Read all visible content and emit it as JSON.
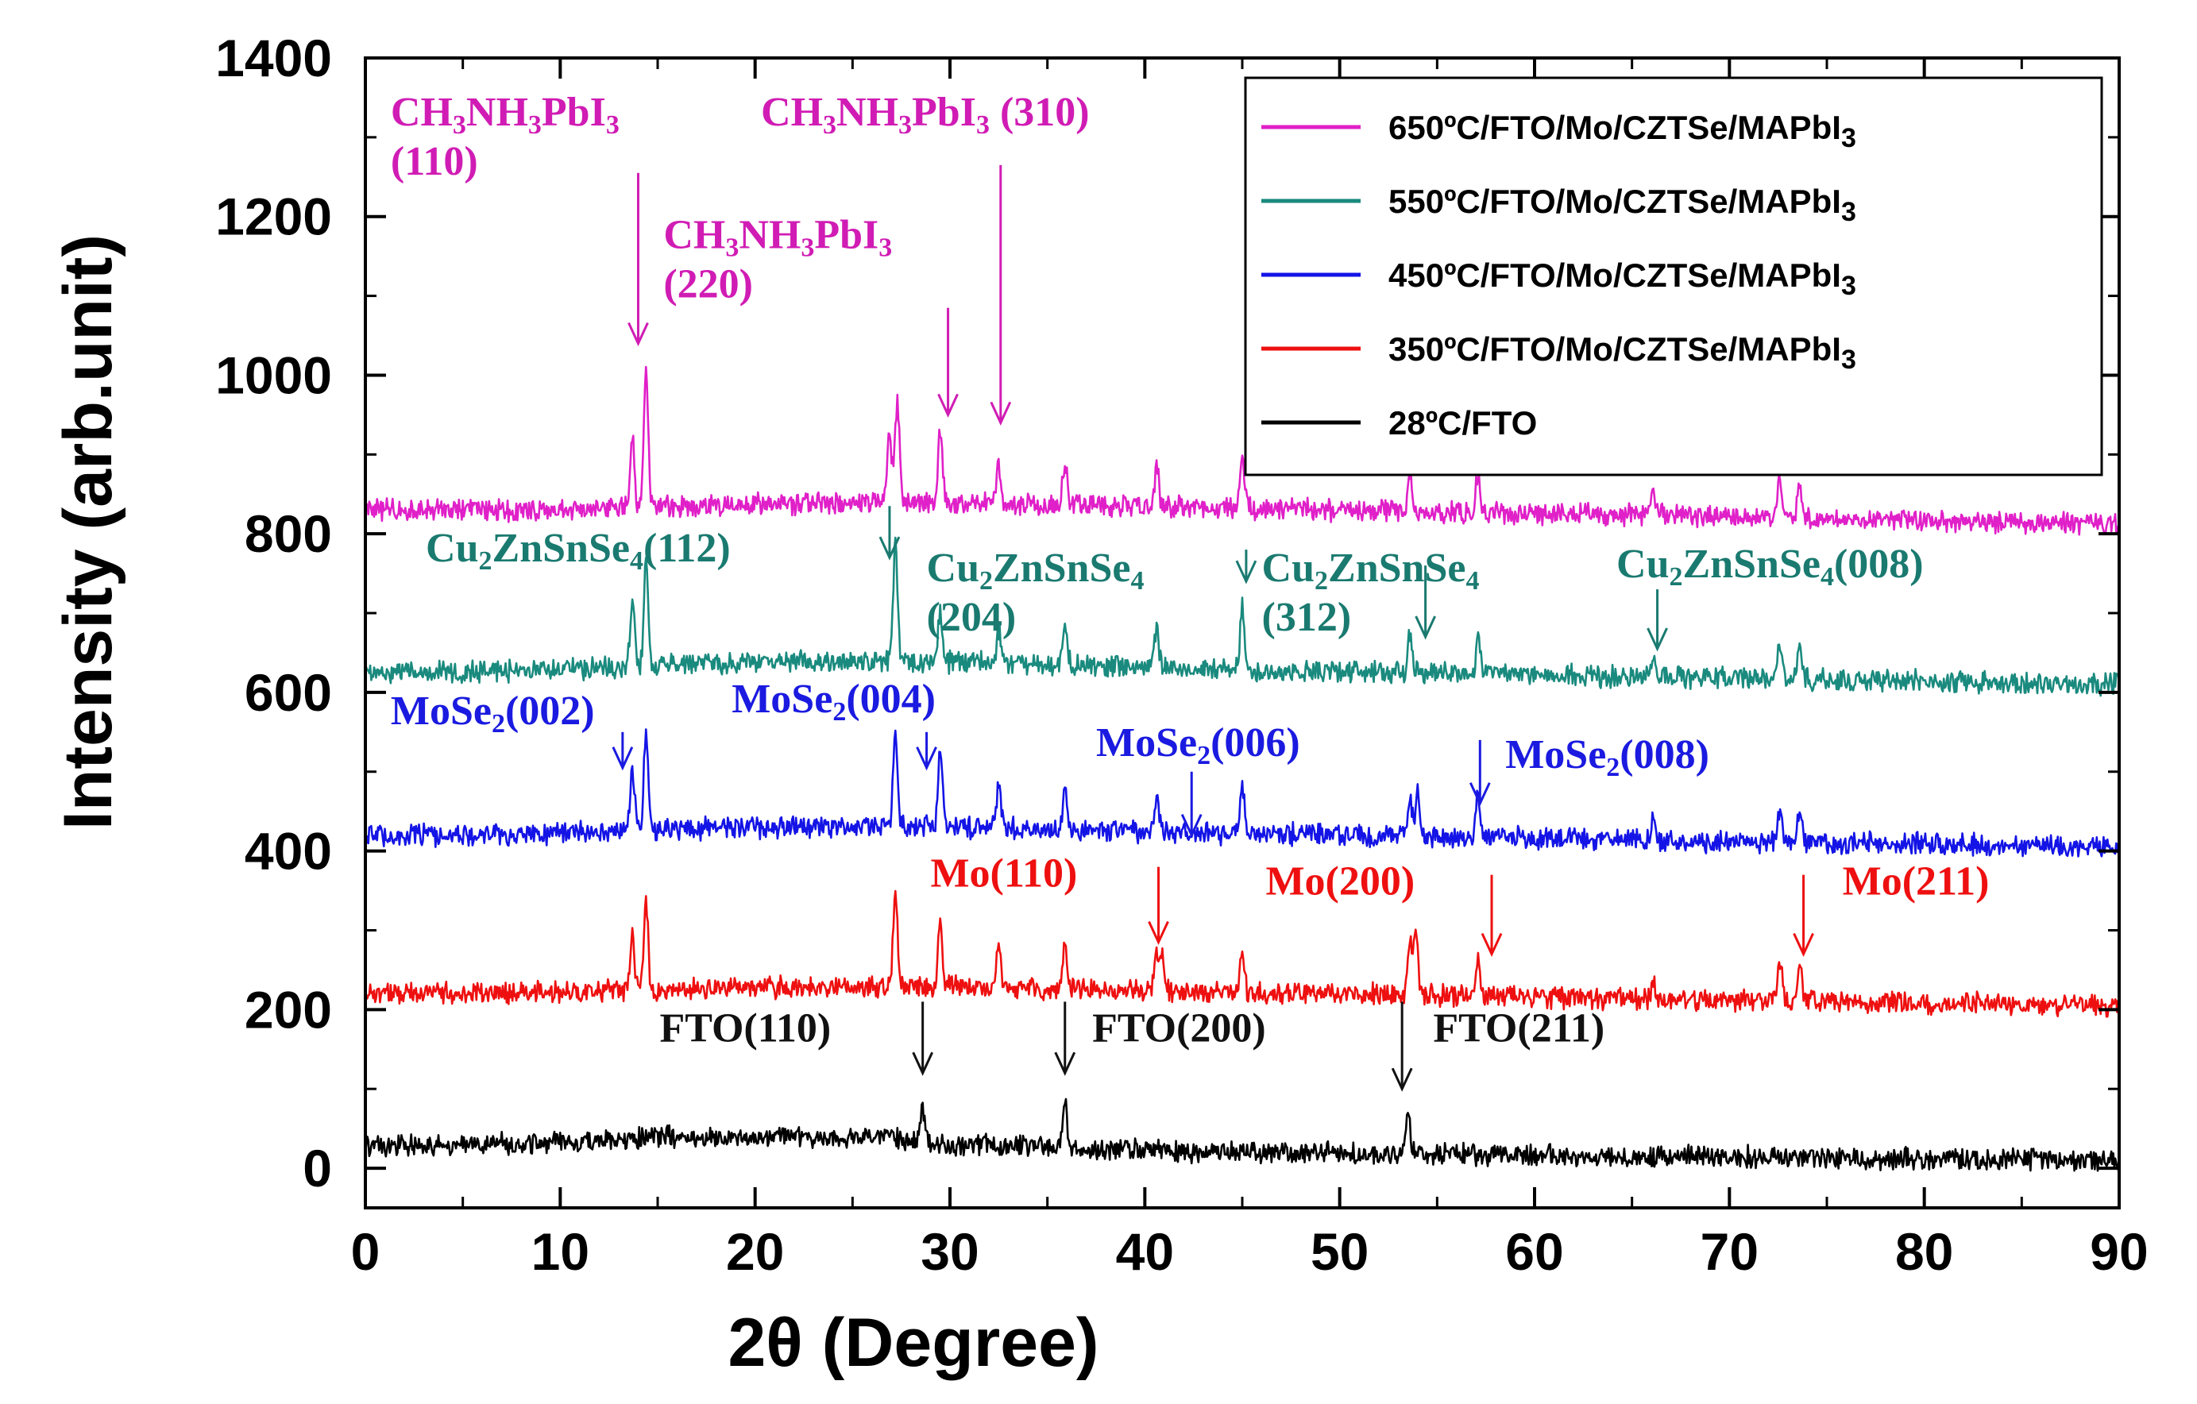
{
  "chart_data": {
    "type": "line",
    "title": "",
    "xlabel": "2θ  (Degree)",
    "ylabel": "Intensity (arb.unit)",
    "xlim": [
      0,
      90
    ],
    "ylim": [
      -50,
      1400
    ],
    "x_ticks": [
      0,
      10,
      20,
      30,
      40,
      50,
      60,
      70,
      80,
      90
    ],
    "y_ticks": [
      0,
      200,
      400,
      600,
      800,
      1000,
      1200,
      1400
    ],
    "legend_position": "top-right",
    "series": [
      {
        "name": "650ºC/FTO/Mo/CZTSe/MAPbI3",
        "legend_label": "650ºC/FTO/Mo/CZTSe/MAPbI3",
        "color": "#e020c8",
        "baseline": [
          [
            0,
            830
          ],
          [
            10,
            830
          ],
          [
            20,
            838
          ],
          [
            27,
            840
          ],
          [
            45,
            832
          ],
          [
            70,
            822
          ],
          [
            90,
            812
          ]
        ],
        "peaks": [
          [
            13.7,
            85
          ],
          [
            14.4,
            170
          ],
          [
            26.9,
            90
          ],
          [
            27.3,
            130
          ],
          [
            29.5,
            95
          ],
          [
            32.5,
            50
          ],
          [
            35.9,
            55
          ],
          [
            40.6,
            50
          ],
          [
            45.0,
            55
          ],
          [
            53.6,
            45
          ],
          [
            57.1,
            45
          ],
          [
            66.1,
            30
          ],
          [
            72.6,
            45
          ],
          [
            73.6,
            45
          ]
        ]
      },
      {
        "name": "550ºC/FTO/Mo/CZTSe/MAPbI3",
        "legend_label": "550ºC/FTO/Mo/CZTSe/MAPbI3",
        "color": "#1a8a7e",
        "baseline": [
          [
            0,
            625
          ],
          [
            10,
            628
          ],
          [
            20,
            638
          ],
          [
            27,
            640
          ],
          [
            45,
            628
          ],
          [
            70,
            618
          ],
          [
            90,
            610
          ]
        ],
        "peaks": [
          [
            13.7,
            90
          ],
          [
            14.4,
            130
          ],
          [
            27.2,
            150
          ],
          [
            29.5,
            60
          ],
          [
            32.5,
            40
          ],
          [
            35.9,
            60
          ],
          [
            40.6,
            50
          ],
          [
            45.0,
            80
          ],
          [
            53.6,
            45
          ],
          [
            57.1,
            45
          ],
          [
            66.1,
            30
          ],
          [
            72.6,
            45
          ],
          [
            73.6,
            45
          ]
        ]
      },
      {
        "name": "450ºC/FTO/Mo/CZTSe/MAPbI3",
        "legend_label": "450ºC/FTO/Mo/CZTSe/MAPbI3",
        "color": "#1414e6",
        "baseline": [
          [
            0,
            420
          ],
          [
            10,
            422
          ],
          [
            20,
            430
          ],
          [
            27,
            432
          ],
          [
            45,
            422
          ],
          [
            70,
            412
          ],
          [
            90,
            405
          ]
        ],
        "peaks": [
          [
            13.7,
            80
          ],
          [
            14.4,
            120
          ],
          [
            27.2,
            120
          ],
          [
            29.5,
            90
          ],
          [
            32.5,
            55
          ],
          [
            35.9,
            50
          ],
          [
            40.6,
            40
          ],
          [
            45.0,
            55
          ],
          [
            53.6,
            50
          ],
          [
            54.0,
            55
          ],
          [
            57.1,
            50
          ],
          [
            66.1,
            25
          ],
          [
            72.6,
            40
          ],
          [
            73.6,
            40
          ]
        ]
      },
      {
        "name": "350ºC/FTO/Mo/CZTSe/MAPbI3",
        "legend_label": "350ºC/FTO/Mo/CZTSe/MAPbI3",
        "color": "#ee1010",
        "baseline": [
          [
            0,
            220
          ],
          [
            10,
            222
          ],
          [
            20,
            228
          ],
          [
            27,
            230
          ],
          [
            45,
            222
          ],
          [
            70,
            212
          ],
          [
            90,
            205
          ]
        ],
        "peaks": [
          [
            13.7,
            70
          ],
          [
            14.4,
            110
          ],
          [
            27.2,
            115
          ],
          [
            29.5,
            80
          ],
          [
            32.5,
            55
          ],
          [
            35.9,
            55
          ],
          [
            40.6,
            50
          ],
          [
            40.9,
            45
          ],
          [
            45.0,
            50
          ],
          [
            53.6,
            70
          ],
          [
            53.9,
            80
          ],
          [
            57.1,
            50
          ],
          [
            66.1,
            25
          ],
          [
            72.6,
            50
          ],
          [
            73.6,
            50
          ]
        ]
      },
      {
        "name": "28ºC/FTO",
        "legend_label": " 28ºC/FTO",
        "color": "#000000",
        "baseline": [
          [
            0,
            28
          ],
          [
            10,
            32
          ],
          [
            15,
            40
          ],
          [
            20,
            38
          ],
          [
            27,
            38
          ],
          [
            30,
            30
          ],
          [
            45,
            20
          ],
          [
            70,
            14
          ],
          [
            90,
            10
          ]
        ],
        "peaks": [
          [
            28.6,
            45
          ],
          [
            35.9,
            55
          ],
          [
            53.5,
            60
          ]
        ]
      }
    ],
    "annotations": [
      {
        "lines": [
          [
            "CH",
            "3",
            "NH",
            "3",
            "PbI",
            "3"
          ],
          [
            "(110)"
          ]
        ],
        "x": 1.3,
        "y": 1315,
        "arrow_x": 14.0,
        "arrow_from": 1255,
        "arrow_to": 1040,
        "color": "#d01cb4"
      },
      {
        "lines": [
          [
            "CH",
            "3",
            "NH",
            "3",
            "PbI",
            "3",
            " (310)"
          ]
        ],
        "x": 20.3,
        "y": 1315,
        "arrow_x": 32.6,
        "arrow_from": 1265,
        "arrow_to": 940,
        "color": "#d01cb4"
      },
      {
        "lines": [
          [
            "CH",
            "3",
            "NH",
            "3",
            "PbI",
            "3"
          ],
          [
            "(220)"
          ]
        ],
        "x": 15.3,
        "y": 1160,
        "arrow_x": 29.9,
        "arrow_from": 1085,
        "arrow_to": 950,
        "color": "#d01cb4"
      },
      {
        "lines": [
          [
            "Cu",
            "2",
            "ZnSnSe",
            "4",
            "(112)"
          ]
        ],
        "x": 3.1,
        "y": 765,
        "arrow_x": 26.9,
        "arrow_from": 835,
        "arrow_to": 770,
        "color": "#1a7a70"
      },
      {
        "lines": [
          [
            "Cu",
            "2",
            "ZnSnSe",
            "4"
          ],
          [
            "(204)"
          ]
        ],
        "x": 28.8,
        "y": 740,
        "arrow_x": 45.2,
        "arrow_from": 780,
        "arrow_to": 740,
        "color": "#1a7a70"
      },
      {
        "lines": [
          [
            "Cu",
            "2",
            "ZnSnSe",
            "4"
          ],
          [
            "(312)"
          ]
        ],
        "x": 46.0,
        "y": 740,
        "arrow_x": 54.4,
        "arrow_from": 760,
        "arrow_to": 670,
        "color": "#1a7a70"
      },
      {
        "lines": [
          [
            "Cu",
            "2",
            "ZnSnSe",
            "4",
            "(008)"
          ]
        ],
        "x": 64.2,
        "y": 745,
        "arrow_x": 66.3,
        "arrow_from": 730,
        "arrow_to": 655,
        "color": "#1a7a70"
      },
      {
        "lines": [
          [
            "MoSe",
            "2",
            "(002)"
          ]
        ],
        "x": 1.3,
        "y": 560,
        "arrow_x": 13.2,
        "arrow_from": 550,
        "arrow_to": 505,
        "color": "#1a1ae0"
      },
      {
        "lines": [
          [
            "MoSe",
            "2",
            "(004)"
          ]
        ],
        "x": 18.8,
        "y": 575,
        "arrow_x": 28.8,
        "arrow_from": 550,
        "arrow_to": 505,
        "color": "#1a1ae0"
      },
      {
        "lines": [
          [
            "MoSe",
            "2",
            "(006)"
          ]
        ],
        "x": 37.5,
        "y": 520,
        "arrow_x": 42.4,
        "arrow_from": 500,
        "arrow_to": 420,
        "color": "#1a1ae0"
      },
      {
        "lines": [
          [
            "MoSe",
            "2",
            "(008)"
          ]
        ],
        "x": 58.5,
        "y": 505,
        "arrow_x": 57.2,
        "arrow_from": 540,
        "arrow_to": 460,
        "color": "#1a1ae0"
      },
      {
        "lines": [
          [
            "Mo(110)"
          ]
        ],
        "x": 29.0,
        "y": 355,
        "arrow_x": 40.7,
        "arrow_from": 380,
        "arrow_to": 285,
        "color": "#ee1010"
      },
      {
        "lines": [
          [
            "Mo(200)"
          ]
        ],
        "x": 46.2,
        "y": 345,
        "arrow_x": 57.8,
        "arrow_from": 370,
        "arrow_to": 270,
        "color": "#ee1010"
      },
      {
        "lines": [
          [
            "Mo(211)"
          ]
        ],
        "x": 75.8,
        "y": 345,
        "arrow_x": 73.8,
        "arrow_from": 370,
        "arrow_to": 270,
        "color": "#ee1010"
      },
      {
        "lines": [
          [
            "FTO(110)"
          ]
        ],
        "x": 15.1,
        "y": 160,
        "arrow_x": 28.6,
        "arrow_from": 210,
        "arrow_to": 120,
        "color": "#111111"
      },
      {
        "lines": [
          [
            "FTO(200)"
          ]
        ],
        "x": 37.3,
        "y": 160,
        "arrow_x": 35.9,
        "arrow_from": 210,
        "arrow_to": 120,
        "color": "#111111"
      },
      {
        "lines": [
          [
            "FTO(211)"
          ]
        ],
        "x": 54.8,
        "y": 160,
        "arrow_x": 53.2,
        "arrow_from": 210,
        "arrow_to": 100,
        "color": "#111111"
      }
    ]
  }
}
